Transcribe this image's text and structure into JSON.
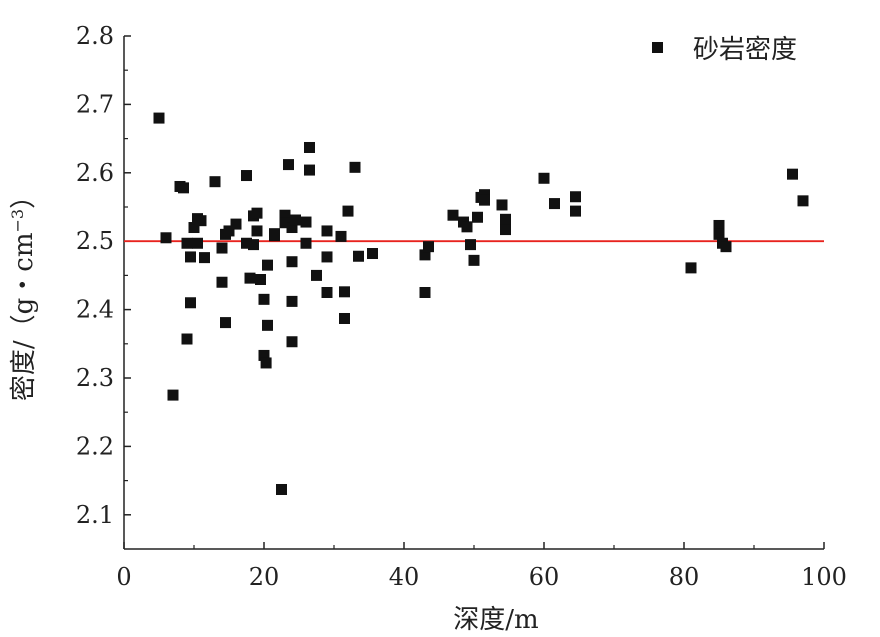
{
  "chart_data": {
    "type": "scatter",
    "xlabel": "深度/m",
    "ylabel": "密度/（g・cm",
    "ylabel_sup": "−3",
    "ylabel_close": "）",
    "xlim": [
      0,
      100
    ],
    "ylim": [
      2.05,
      2.8
    ],
    "xticks": [
      0,
      20,
      40,
      60,
      80,
      100
    ],
    "yticks": [
      2.1,
      2.2,
      2.3,
      2.4,
      2.5,
      2.6,
      2.7,
      2.8
    ],
    "xtick_labels": [
      "0",
      "20",
      "40",
      "60",
      "80",
      "100"
    ],
    "ytick_labels": [
      "2.1",
      "2.2",
      "2.3",
      "2.4",
      "2.5",
      "2.6",
      "2.7",
      "2.8"
    ],
    "grid": false,
    "legend_position": "top-right",
    "reference_line": {
      "y": 2.5,
      "color": "#e8231e"
    },
    "series": [
      {
        "name": "砂岩密度",
        "color": "#111111",
        "marker": "square",
        "points": [
          [
            5,
            2.68
          ],
          [
            6,
            2.505
          ],
          [
            7,
            2.275
          ],
          [
            8,
            2.58
          ],
          [
            8.5,
            2.578
          ],
          [
            9,
            2.497
          ],
          [
            9,
            2.357
          ],
          [
            9.5,
            2.477
          ],
          [
            9.5,
            2.41
          ],
          [
            10,
            2.52
          ],
          [
            10.5,
            2.497
          ],
          [
            10.5,
            2.533
          ],
          [
            11,
            2.53
          ],
          [
            11.5,
            2.476
          ],
          [
            13,
            2.587
          ],
          [
            14,
            2.49
          ],
          [
            14,
            2.44
          ],
          [
            14.5,
            2.381
          ],
          [
            14.5,
            2.51
          ],
          [
            15,
            2.515
          ],
          [
            16,
            2.525
          ],
          [
            17.5,
            2.596
          ],
          [
            17.5,
            2.497
          ],
          [
            18,
            2.446
          ],
          [
            18.5,
            2.537
          ],
          [
            18.5,
            2.495
          ],
          [
            19,
            2.541
          ],
          [
            19,
            2.515
          ],
          [
            19.5,
            2.444
          ],
          [
            20,
            2.415
          ],
          [
            20,
            2.333
          ],
          [
            20.3,
            2.322
          ],
          [
            20.5,
            2.465
          ],
          [
            20.5,
            2.377
          ],
          [
            21.5,
            2.508
          ],
          [
            21.5,
            2.511
          ],
          [
            22.5,
            2.137
          ],
          [
            23,
            2.538
          ],
          [
            23,
            2.527
          ],
          [
            23.5,
            2.612
          ],
          [
            24,
            2.47
          ],
          [
            24,
            2.353
          ],
          [
            24,
            2.412
          ],
          [
            24,
            2.52
          ],
          [
            24.5,
            2.531
          ],
          [
            26,
            2.528
          ],
          [
            26,
            2.497
          ],
          [
            26.5,
            2.637
          ],
          [
            26.5,
            2.604
          ],
          [
            27.5,
            2.45
          ],
          [
            29,
            2.515
          ],
          [
            29,
            2.477
          ],
          [
            29,
            2.425
          ],
          [
            31,
            2.507
          ],
          [
            31.5,
            2.426
          ],
          [
            31.5,
            2.387
          ],
          [
            32,
            2.544
          ],
          [
            33,
            2.608
          ],
          [
            33.5,
            2.478
          ],
          [
            35.5,
            2.482
          ],
          [
            43,
            2.48
          ],
          [
            43,
            2.425
          ],
          [
            43.5,
            2.492
          ],
          [
            47,
            2.538
          ],
          [
            48.5,
            2.528
          ],
          [
            49,
            2.521
          ],
          [
            49.5,
            2.495
          ],
          [
            50,
            2.472
          ],
          [
            50.5,
            2.535
          ],
          [
            51,
            2.564
          ],
          [
            51.5,
            2.568
          ],
          [
            51.5,
            2.56
          ],
          [
            54,
            2.553
          ],
          [
            54.5,
            2.532
          ],
          [
            54.5,
            2.517
          ],
          [
            60,
            2.592
          ],
          [
            61.5,
            2.555
          ],
          [
            64.5,
            2.565
          ],
          [
            64.5,
            2.544
          ],
          [
            81,
            2.461
          ],
          [
            85,
            2.523
          ],
          [
            85,
            2.51
          ],
          [
            85.5,
            2.497
          ],
          [
            86,
            2.492
          ],
          [
            95.5,
            2.598
          ],
          [
            97,
            2.559
          ]
        ]
      }
    ]
  }
}
